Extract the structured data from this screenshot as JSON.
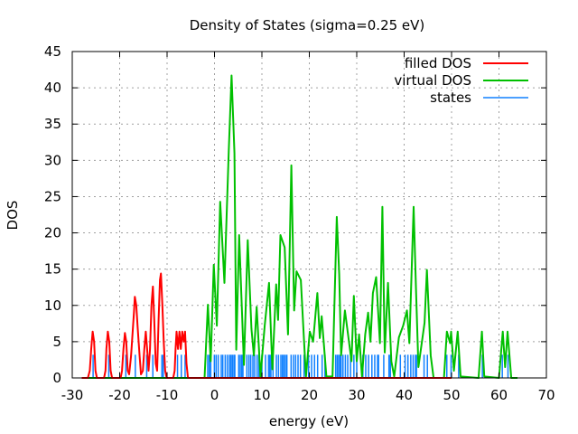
{
  "chart_data": {
    "type": "line",
    "title": "Density of States (sigma=0.25 eV)",
    "xlabel": "energy (eV)",
    "ylabel": "DOS",
    "xlim": [
      -30,
      70
    ],
    "ylim": [
      0,
      45
    ],
    "xticks": [
      -30,
      -20,
      -10,
      0,
      10,
      20,
      30,
      40,
      50,
      60,
      70
    ],
    "yticks": [
      0,
      5,
      10,
      15,
      20,
      25,
      30,
      35,
      40,
      45
    ],
    "grid": true,
    "legend_position": "top-right",
    "state_height": 3.2,
    "series": [
      {
        "name": "filled DOS",
        "color": "#ff0000",
        "points": [
          [
            -28,
            0
          ],
          [
            -26.7,
            0
          ],
          [
            -26.3,
            1
          ],
          [
            -26,
            4
          ],
          [
            -25.7,
            6.4
          ],
          [
            -25.4,
            5
          ],
          [
            -25.1,
            1
          ],
          [
            -24.8,
            0
          ],
          [
            -23.3,
            0
          ],
          [
            -23,
            1
          ],
          [
            -22.8,
            4
          ],
          [
            -22.5,
            6.4
          ],
          [
            -22.2,
            5
          ],
          [
            -21.9,
            1
          ],
          [
            -21.6,
            0
          ],
          [
            -19.8,
            0
          ],
          [
            -19.5,
            1
          ],
          [
            -19.2,
            4
          ],
          [
            -18.9,
            6.2
          ],
          [
            -18.6,
            5
          ],
          [
            -18.3,
            1
          ],
          [
            -18,
            0.5
          ],
          [
            -17.6,
            3
          ],
          [
            -17.3,
            6
          ],
          [
            -17.0,
            9
          ],
          [
            -16.8,
            11.2
          ],
          [
            -16.5,
            10
          ],
          [
            -16.2,
            7
          ],
          [
            -15.8,
            3
          ],
          [
            -15.5,
            0.5
          ],
          [
            -15.1,
            1
          ],
          [
            -14.8,
            4
          ],
          [
            -14.5,
            6.4
          ],
          [
            -14.2,
            4
          ],
          [
            -13.9,
            1
          ],
          [
            -13.6,
            4
          ],
          [
            -13.3,
            10
          ],
          [
            -13.0,
            12.6
          ],
          [
            -12.7,
            8
          ],
          [
            -12.4,
            2
          ],
          [
            -12.1,
            1
          ],
          [
            -11.8,
            8
          ],
          [
            -11.5,
            13.5
          ],
          [
            -11.3,
            14.4
          ],
          [
            -11.0,
            10
          ],
          [
            -10.7,
            5
          ],
          [
            -10.4,
            1
          ],
          [
            -10.1,
            0
          ],
          [
            -8.7,
            0
          ],
          [
            -8.4,
            1
          ],
          [
            -8.2,
            4
          ],
          [
            -8.0,
            6.4
          ],
          [
            -7.7,
            4
          ],
          [
            -7.4,
            6.4
          ],
          [
            -7.1,
            4
          ],
          [
            -6.8,
            6.4
          ],
          [
            -6.5,
            5
          ],
          [
            -6.2,
            6.4
          ],
          [
            -5.9,
            2
          ],
          [
            -5.6,
            0
          ],
          [
            50,
            0
          ]
        ]
      },
      {
        "name": "virtual DOS",
        "color": "#00c000",
        "points": [
          [
            -28,
            0
          ],
          [
            -2.1,
            0
          ],
          [
            -1.4,
            10.1
          ],
          [
            -0.8,
            2.3
          ],
          [
            -0.15,
            15.6
          ],
          [
            0.5,
            7.2
          ],
          [
            1.2,
            24.3
          ],
          [
            2.1,
            13.1
          ],
          [
            3.0,
            31.3
          ],
          [
            3.6,
            41.7
          ],
          [
            4.2,
            31
          ],
          [
            4.6,
            3.9
          ],
          [
            5.2,
            19.7
          ],
          [
            6.2,
            1.8
          ],
          [
            7.0,
            19
          ],
          [
            7.8,
            6.8
          ],
          [
            8.3,
            3.1
          ],
          [
            8.9,
            9.8
          ],
          [
            9.7,
            0.2
          ],
          [
            10.6,
            7.2
          ],
          [
            11.5,
            13.1
          ],
          [
            12.2,
            1.2
          ],
          [
            13.0,
            12.9
          ],
          [
            13.4,
            8
          ],
          [
            13.9,
            19.7
          ],
          [
            14.8,
            18
          ],
          [
            15.5,
            6
          ],
          [
            16.2,
            29.3
          ],
          [
            16.8,
            9.3
          ],
          [
            17.3,
            14.7
          ],
          [
            18.2,
            13.5
          ],
          [
            18.9,
            5
          ],
          [
            19.3,
            0.2
          ],
          [
            20.1,
            6.4
          ],
          [
            20.8,
            5
          ],
          [
            21.7,
            11.7
          ],
          [
            22.2,
            5.5
          ],
          [
            22.6,
            8.5
          ],
          [
            23.6,
            0.2
          ],
          [
            24.9,
            0.2
          ],
          [
            25.3,
            10.1
          ],
          [
            25.8,
            22.2
          ],
          [
            26.3,
            14.3
          ],
          [
            26.7,
            3.1
          ],
          [
            27.5,
            9.3
          ],
          [
            28.3,
            5.3
          ],
          [
            28.9,
            2.3
          ],
          [
            29.4,
            11.3
          ],
          [
            30.0,
            2.3
          ],
          [
            30.5,
            6
          ],
          [
            31.1,
            0.2
          ],
          [
            31.8,
            6
          ],
          [
            32.4,
            9
          ],
          [
            32.9,
            5
          ],
          [
            33.4,
            11.7
          ],
          [
            34.1,
            13.9
          ],
          [
            34.9,
            4.8
          ],
          [
            35.4,
            23.6
          ],
          [
            35.9,
            3.5
          ],
          [
            36.6,
            13.1
          ],
          [
            37.3,
            2.3
          ],
          [
            37.9,
            0.2
          ],
          [
            38.9,
            5.6
          ],
          [
            39.8,
            7.2
          ],
          [
            40.6,
            9.3
          ],
          [
            41.1,
            4.8
          ],
          [
            42.0,
            23.6
          ],
          [
            42.5,
            12.3
          ],
          [
            43.0,
            1.5
          ],
          [
            44.3,
            7.6
          ],
          [
            44.8,
            14.9
          ],
          [
            45.6,
            3.1
          ],
          [
            46.2,
            0
          ],
          [
            48.4,
            0
          ],
          [
            49.0,
            6.4
          ],
          [
            49.7,
            4.8
          ],
          [
            49.9,
            6.4
          ],
          [
            50.5,
            1
          ],
          [
            51.3,
            6.4
          ],
          [
            51.9,
            0.2
          ],
          [
            55.7,
            0
          ],
          [
            56.4,
            6.4
          ],
          [
            56.9,
            0.2
          ],
          [
            60.0,
            0
          ],
          [
            60.8,
            6.4
          ],
          [
            61.3,
            1.5
          ],
          [
            61.8,
            6.4
          ],
          [
            62.6,
            0
          ],
          [
            63.9,
            0
          ]
        ]
      },
      {
        "name": "states",
        "color": "#1080ff",
        "energies": [
          -25.6,
          -22.3,
          -18.7,
          -16.7,
          -14.3,
          -13.0,
          -11.1,
          -10.8,
          -7.8,
          -7.0,
          -6.2,
          -1.1,
          -1.43,
          -0.79,
          -0.03,
          0.35,
          0.79,
          1.43,
          1.75,
          2.26,
          2.7,
          3.14,
          3.46,
          3.78,
          4.1,
          4.29,
          5.11,
          5.43,
          5.75,
          6.0,
          6.83,
          7.27,
          7.65,
          8.1,
          8.48,
          8.99,
          9.37,
          10.0,
          10.76,
          11.4,
          11.65,
          11.9,
          12.35,
          13.05,
          13.5,
          14.0,
          14.32,
          14.64,
          14.96,
          15.27,
          16.16,
          16.67,
          17.11,
          17.62,
          18.13,
          18.89,
          19.84,
          20.48,
          21.1,
          21.75,
          22.7,
          23.3,
          25.56,
          25.9,
          26.2,
          26.5,
          26.7,
          27.1,
          27.6,
          28.1,
          28.7,
          29.4,
          30.0,
          31.3,
          31.9,
          32.5,
          33.2,
          33.8,
          34.4,
          34.6,
          35.7,
          36.8,
          37.1,
          39.2,
          40.2,
          40.8,
          41.4,
          41.9,
          42.4,
          42.6,
          44.2,
          44.9,
          49.0,
          49.9,
          51.5,
          56.5,
          60.7,
          61.9
        ]
      }
    ]
  }
}
